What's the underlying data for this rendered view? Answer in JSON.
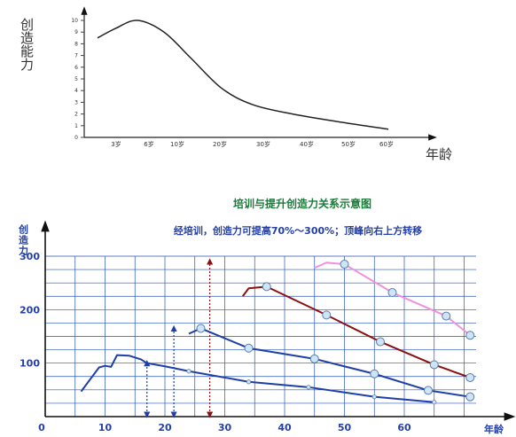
{
  "chart_data": [
    {
      "type": "line",
      "title": "",
      "ylabel": "创造能力",
      "xlabel": "年龄",
      "yticks": [
        "0",
        "1",
        "2",
        "3",
        "4",
        "5",
        "6",
        "7",
        "8",
        "9",
        "10"
      ],
      "xticks": [
        "3岁",
        "6岁",
        "10岁",
        "20岁",
        "30岁",
        "40岁",
        "50岁",
        "60岁"
      ],
      "ylim": [
        0,
        10
      ],
      "series": [
        {
          "x": [
            0,
            1,
            2,
            3,
            4,
            5,
            6,
            7,
            8,
            9
          ],
          "values": [
            8.5,
            9.3,
            10.0,
            9.0,
            6.8,
            4.2,
            2.8,
            2.0,
            1.3,
            0.7
          ]
        }
      ]
    },
    {
      "type": "line",
      "title": "培训与提升创造力关系示意图",
      "subtitle": "经培训，创造力可提高70%～300%；顶峰向右上方转移",
      "ylabel": "创造力",
      "xlabel": "年龄",
      "xticks": [
        "0",
        "10",
        "20",
        "30",
        "40",
        "50",
        "60"
      ],
      "yticks": [
        "100",
        "200",
        "300"
      ],
      "xlim": [
        0,
        70
      ],
      "ylim": [
        0,
        300
      ],
      "grid": true,
      "colors": {
        "blue": "#1f3fa8",
        "darkred": "#8b1010",
        "pink": "#f090e0",
        "marker_fill": "#cfe4f7"
      },
      "series": [
        {
          "color": "#1f3fa8",
          "x": [
            6,
            9,
            10,
            11,
            12,
            14,
            16,
            17,
            20,
            24,
            34,
            44,
            55,
            65
          ],
          "values": [
            47,
            92,
            95,
            93,
            115,
            114,
            107,
            100,
            94,
            85,
            65,
            55,
            37,
            27
          ]
        },
        {
          "color": "#1f3fa8",
          "x": [
            24,
            26,
            34,
            45,
            55,
            64,
            71
          ],
          "values": [
            155,
            165,
            128,
            108,
            80,
            49,
            37
          ]
        },
        {
          "color": "#8b1010",
          "x": [
            33,
            34,
            37,
            47,
            56,
            65,
            71
          ],
          "values": [
            225,
            240,
            243,
            190,
            140,
            97,
            73
          ]
        },
        {
          "color": "#f090e0",
          "x": [
            45,
            47,
            50,
            58,
            67,
            71
          ],
          "values": [
            278,
            288,
            285,
            232,
            188,
            152
          ]
        }
      ],
      "markers": [
        {
          "x": 26,
          "y": 165
        },
        {
          "x": 34,
          "y": 128
        },
        {
          "x": 45,
          "y": 108
        },
        {
          "x": 55,
          "y": 80
        },
        {
          "x": 64,
          "y": 49
        },
        {
          "x": 71,
          "y": 37
        },
        {
          "x": 37,
          "y": 243
        },
        {
          "x": 47,
          "y": 190
        },
        {
          "x": 56,
          "y": 140
        },
        {
          "x": 65,
          "y": 97
        },
        {
          "x": 71,
          "y": 73
        },
        {
          "x": 50,
          "y": 285
        },
        {
          "x": 58,
          "y": 232
        },
        {
          "x": 67,
          "y": 188
        },
        {
          "x": 71,
          "y": 152
        }
      ],
      "small_markers": [
        {
          "x": 24,
          "y": 85
        },
        {
          "x": 34,
          "y": 65
        },
        {
          "x": 44,
          "y": 55
        },
        {
          "x": 55,
          "y": 37
        },
        {
          "x": 65,
          "y": 27
        }
      ],
      "arrows": [
        {
          "x": 17,
          "to": 100,
          "color": "#1f3fa8"
        },
        {
          "x": 21.5,
          "to": 165,
          "color": "#1f3fa8"
        },
        {
          "x": 27.5,
          "to": 290,
          "color": "#8b1010"
        }
      ]
    }
  ]
}
